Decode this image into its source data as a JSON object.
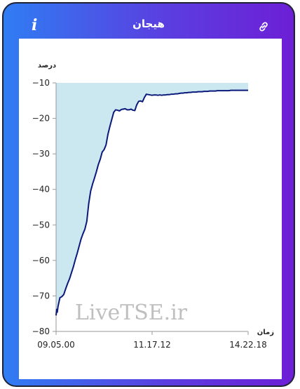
{
  "header": {
    "title": "هیجان",
    "info_icon": "info-icon",
    "link_icon": "link-icon"
  },
  "colors": {
    "gradient_start": "#2f7df3",
    "gradient_end": "#6d1fd6",
    "line": "#0b1a7a",
    "area_fill": "#cbe7f0"
  },
  "watermark": "LiveTSE.ir",
  "chart_data": {
    "type": "area",
    "ylabel": "درصد",
    "xlabel": "زمان",
    "ylim": [
      -80,
      -10
    ],
    "y_ticks": [
      -10,
      -20,
      -30,
      -40,
      -50,
      -60,
      -70,
      -80
    ],
    "x_ticks": [
      "09.05.00",
      "11.17.12",
      "14.22.18"
    ],
    "fill_to": -10,
    "series": [
      {
        "x": [
          0,
          0.3,
          0.6,
          1,
          2,
          3,
          4,
          5,
          6,
          7,
          8,
          9,
          10,
          11,
          12,
          13,
          14,
          15,
          16,
          17,
          18,
          19,
          20,
          21,
          22,
          23,
          24,
          25,
          26,
          27,
          28,
          29,
          30,
          31,
          32,
          33,
          34,
          35,
          36,
          37,
          38,
          39,
          40,
          41,
          42,
          43,
          44,
          45,
          46,
          47,
          48,
          49,
          50,
          51,
          52,
          53,
          54,
          55,
          56,
          57,
          58,
          59,
          60,
          61,
          62,
          63,
          64,
          65,
          66,
          67,
          68,
          69,
          70,
          71,
          72,
          73,
          74,
          75,
          76,
          77,
          78,
          79,
          80,
          81,
          82,
          83,
          84,
          85,
          86,
          87,
          88,
          89,
          90,
          91,
          92,
          93,
          94,
          95,
          96,
          97,
          98,
          99,
          100
        ],
        "y": [
          -75.5,
          -73.8,
          -74.6,
          -73,
          -70.5,
          -70.2,
          -69.6,
          -68,
          -66.5,
          -65.2,
          -63.5,
          -61.8,
          -59.8,
          -58,
          -56,
          -54,
          -52.5,
          -51.2,
          -49,
          -44,
          -40.5,
          -38.5,
          -36.8,
          -35,
          -33,
          -31.5,
          -29.5,
          -28.8,
          -27.5,
          -24.5,
          -22.3,
          -20.3,
          -18.3,
          -17.6,
          -17.7,
          -17.9,
          -17.5,
          -17.4,
          -17.3,
          -17.6,
          -17.6,
          -17.4,
          -17.7,
          -17.8,
          -16.2,
          -15.2,
          -15.1,
          -15.3,
          -14.1,
          -13.2,
          -13.3,
          -13.4,
          -13.5,
          -13.4,
          -13.4,
          -13.5,
          -13.4,
          -13.5,
          -13.4,
          -13.4,
          -13.3,
          -13.3,
          -13.2,
          -13.2,
          -13.1,
          -13.1,
          -13.0,
          -12.9,
          -12.9,
          -12.8,
          -12.8,
          -12.7,
          -12.7,
          -12.6,
          -12.6,
          -12.6,
          -12.5,
          -12.5,
          -12.5,
          -12.4,
          -12.4,
          -12.4,
          -12.3,
          -12.3,
          -12.3,
          -12.3,
          -12.2,
          -12.2,
          -12.2,
          -12.2,
          -12.2,
          -12.2,
          -12.2,
          -12.1,
          -12.1,
          -12.1,
          -12.1,
          -12.1,
          -12.1,
          -12.1,
          -12.1,
          -12.1,
          -12.1
        ]
      }
    ]
  }
}
